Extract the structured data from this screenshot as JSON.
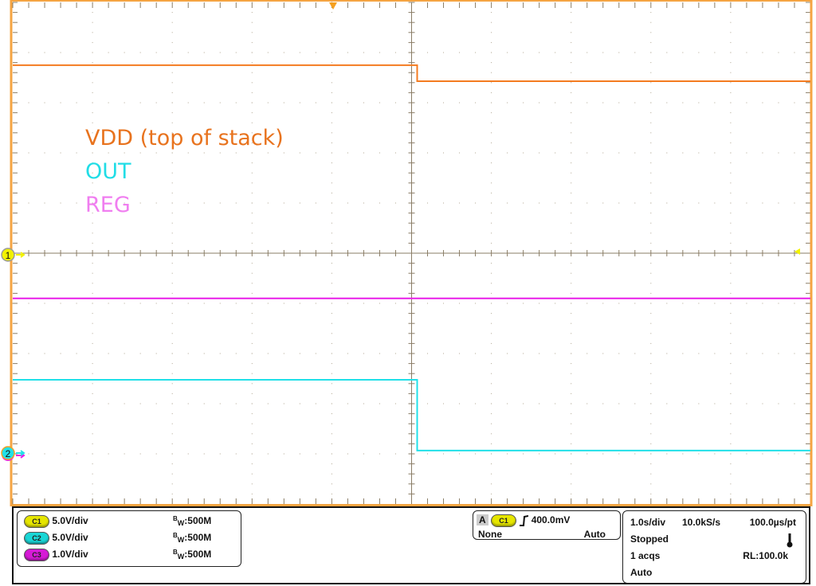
{
  "chart_data": {
    "type": "line",
    "title": "",
    "xlabel": "",
    "ylabel": "",
    "grid": true,
    "x_divisions": 10,
    "y_divisions": 10,
    "xlim": [
      -5.0,
      5.0
    ],
    "x_unit": "s",
    "legend_position": "top-left",
    "series": [
      {
        "name": "VDD (top of stack)",
        "channel": "C1",
        "color": "#f47b20",
        "volts_per_div": 5.0,
        "x": [
          -5.0,
          0.07,
          0.07,
          5.0
        ],
        "y": [
          18.9,
          18.9,
          17.3,
          17.3
        ]
      },
      {
        "name": "OUT",
        "channel": "C2",
        "color": "#21e0e8",
        "volts_per_div": 5.0,
        "x": [
          -5.0,
          0.07,
          0.07,
          5.0
        ],
        "y": [
          7.3,
          7.3,
          0.25,
          0.25
        ]
      },
      {
        "name": "REG",
        "channel": "C3",
        "color": "#e81ee8",
        "volts_per_div": 1.0,
        "x": [
          -5.0,
          5.0
        ],
        "y": [
          3.1,
          3.1
        ]
      }
    ],
    "markers": {
      "ch1_ground": "1",
      "ch2_ground": "2"
    }
  },
  "legend": {
    "vdd": {
      "label": "VDD (top of stack)",
      "color": "#e8731e"
    },
    "out": {
      "label": "OUT",
      "color": "#21dde6"
    },
    "reg": {
      "label": "REG",
      "color": "#f07ef0"
    }
  },
  "channels": [
    {
      "badge": "C1",
      "scale": "5.0V/div",
      "bw_prefix": "B",
      "bw_sub": "W",
      "bw": ":500M",
      "color": "#e6e600"
    },
    {
      "badge": "C2",
      "scale": "5.0V/div",
      "bw_prefix": "B",
      "bw_sub": "W",
      "bw": ":500M",
      "color": "#1ad6d6"
    },
    {
      "badge": "C3",
      "scale": "1.0V/div",
      "bw_prefix": "B",
      "bw_sub": "W",
      "bw": ":500M",
      "color": "#d61ad6"
    }
  ],
  "trigger": {
    "mode_letter": "A",
    "source": "C1",
    "slope": "rising-edge-icon",
    "level": "400.0mV",
    "coupling": "None",
    "mode": "Auto"
  },
  "acquisition": {
    "timebase": "1.0s/div",
    "sample_rate": "10.0kS/s",
    "resolution": "100.0µs/pt",
    "state": "Stopped",
    "acqs": "1 acqs",
    "record_length": "RL:100.0k",
    "mode": "Auto",
    "thermometer_icon": "thermometer-icon"
  }
}
